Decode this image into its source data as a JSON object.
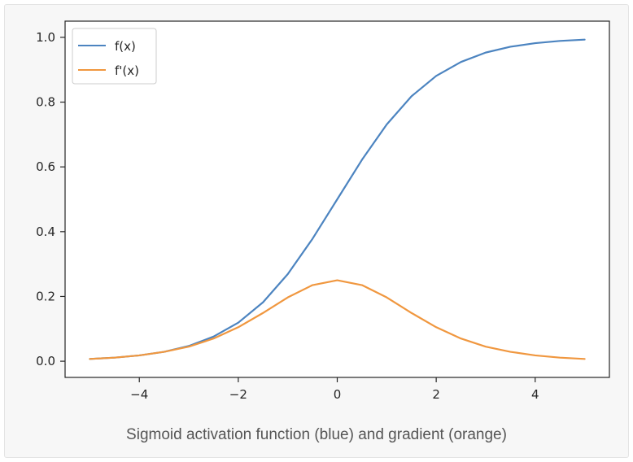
{
  "caption": "Sigmoid activation function (blue) and gradient (orange)",
  "colors": {
    "f": "#4c84c0",
    "fprime": "#f0973f"
  },
  "chart_data": {
    "type": "line",
    "title": "",
    "xlabel": "",
    "ylabel": "",
    "xlim": [
      -5.5,
      5.5
    ],
    "ylim": [
      -0.05,
      1.05
    ],
    "xticks": [
      -4,
      -2,
      0,
      2,
      4
    ],
    "xtick_labels": [
      "−4",
      "−2",
      "0",
      "2",
      "4"
    ],
    "yticks": [
      0.0,
      0.2,
      0.4,
      0.6,
      0.8,
      1.0
    ],
    "ytick_labels": [
      "0.0",
      "0.2",
      "0.4",
      "0.6",
      "0.8",
      "1.0"
    ],
    "grid": false,
    "legend_position": "top-left",
    "x": [
      -5,
      -4.5,
      -4,
      -3.5,
      -3,
      -2.5,
      -2,
      -1.5,
      -1,
      -0.5,
      0,
      0.5,
      1,
      1.5,
      2,
      2.5,
      3,
      3.5,
      4,
      4.5,
      5
    ],
    "series": [
      {
        "name": "f(x)",
        "color": "#4c84c0",
        "values": [
          0.007,
          0.011,
          0.018,
          0.029,
          0.047,
          0.076,
          0.119,
          0.182,
          0.269,
          0.378,
          0.5,
          0.622,
          0.731,
          0.818,
          0.881,
          0.924,
          0.953,
          0.971,
          0.982,
          0.989,
          0.993
        ]
      },
      {
        "name": "f'(x)",
        "color": "#f0973f",
        "values": [
          0.007,
          0.011,
          0.018,
          0.029,
          0.045,
          0.07,
          0.105,
          0.149,
          0.197,
          0.235,
          0.25,
          0.235,
          0.197,
          0.149,
          0.105,
          0.07,
          0.045,
          0.029,
          0.018,
          0.011,
          0.007
        ]
      }
    ]
  }
}
